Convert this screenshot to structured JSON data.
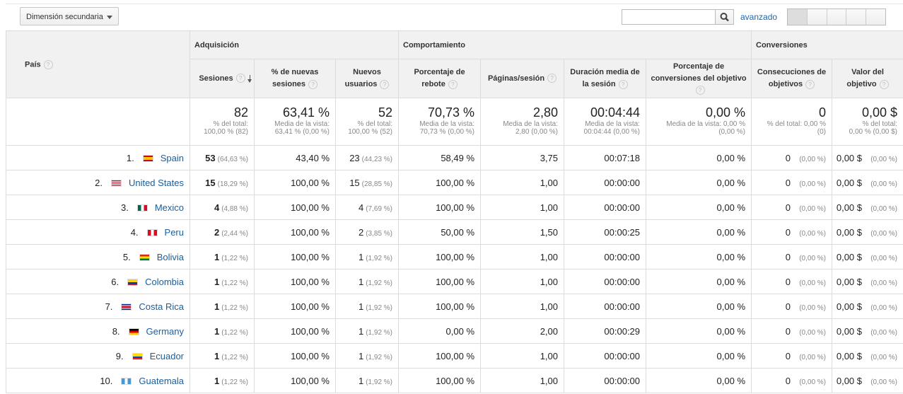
{
  "toolbar": {
    "secondary_dimension": "Dimensión secundaria",
    "advanced": "avanzado"
  },
  "table": {
    "groups": [
      "Adquisición",
      "Comportamiento",
      "Conversiones"
    ],
    "dimension": "País",
    "columns": [
      "Sesiones",
      "% de nuevas sesiones",
      "Nuevos usuarios",
      "Porcentaje de rebote",
      "Páginas/sesión",
      "Duración media de la sesión",
      "Porcentaje de conversiones del objetivo",
      "Consecuciones de objetivos",
      "Valor del objetivo"
    ],
    "totals": [
      {
        "value": "82",
        "sub": [
          "% del total:",
          "100,00 % (82)"
        ]
      },
      {
        "value": "63,41 %",
        "sub": [
          "Media de la vista:",
          "63,41 % (0,00 %)"
        ]
      },
      {
        "value": "52",
        "sub": [
          "% del total:",
          "100,00 % (52)"
        ]
      },
      {
        "value": "70,73 %",
        "sub": [
          "Media de la vista:",
          "70,73 % (0,00 %)"
        ]
      },
      {
        "value": "2,80",
        "sub": [
          "Media de la vista:",
          "2,80 (0,00 %)"
        ]
      },
      {
        "value": "00:04:44",
        "sub": [
          "Media de la vista:",
          "00:04:44 (0,00 %)"
        ]
      },
      {
        "value": "0,00 %",
        "sub": [
          "Media de la vista: 0,00 %",
          "(0,00 %)"
        ]
      },
      {
        "value": "0",
        "sub": [
          "% del total: 0,00 %",
          "(0)"
        ]
      },
      {
        "value": "0,00 $",
        "sub": [
          "% del total:",
          "0,00 % (0,00 $)"
        ]
      }
    ],
    "rows": [
      {
        "rank": "1.",
        "country": "Spain",
        "cells": [
          [
            "53",
            "(64,63 %)"
          ],
          [
            "43,40 %"
          ],
          [
            "23",
            "(44,23 %)"
          ],
          [
            "58,49 %"
          ],
          [
            "3,75"
          ],
          [
            "00:07:18"
          ],
          [
            "0,00 %"
          ],
          [
            "0",
            "(0,00 %)"
          ],
          [
            "0,00 $",
            "(0,00 %)"
          ]
        ]
      },
      {
        "rank": "2.",
        "country": "United States",
        "cells": [
          [
            "15",
            "(18,29 %)"
          ],
          [
            "100,00 %"
          ],
          [
            "15",
            "(28,85 %)"
          ],
          [
            "100,00 %"
          ],
          [
            "1,00"
          ],
          [
            "00:00:00"
          ],
          [
            "0,00 %"
          ],
          [
            "0",
            "(0,00 %)"
          ],
          [
            "0,00 $",
            "(0,00 %)"
          ]
        ]
      },
      {
        "rank": "3.",
        "country": "Mexico",
        "cells": [
          [
            "4",
            "(4,88 %)"
          ],
          [
            "100,00 %"
          ],
          [
            "4",
            "(7,69 %)"
          ],
          [
            "100,00 %"
          ],
          [
            "1,00"
          ],
          [
            "00:00:00"
          ],
          [
            "0,00 %"
          ],
          [
            "0",
            "(0,00 %)"
          ],
          [
            "0,00 $",
            "(0,00 %)"
          ]
        ]
      },
      {
        "rank": "4.",
        "country": "Peru",
        "cells": [
          [
            "2",
            "(2,44 %)"
          ],
          [
            "100,00 %"
          ],
          [
            "2",
            "(3,85 %)"
          ],
          [
            "50,00 %"
          ],
          [
            "1,50"
          ],
          [
            "00:00:25"
          ],
          [
            "0,00 %"
          ],
          [
            "0",
            "(0,00 %)"
          ],
          [
            "0,00 $",
            "(0,00 %)"
          ]
        ]
      },
      {
        "rank": "5.",
        "country": "Bolivia",
        "cells": [
          [
            "1",
            "(1,22 %)"
          ],
          [
            "100,00 %"
          ],
          [
            "1",
            "(1,92 %)"
          ],
          [
            "100,00 %"
          ],
          [
            "1,00"
          ],
          [
            "00:00:00"
          ],
          [
            "0,00 %"
          ],
          [
            "0",
            "(0,00 %)"
          ],
          [
            "0,00 $",
            "(0,00 %)"
          ]
        ]
      },
      {
        "rank": "6.",
        "country": "Colombia",
        "cells": [
          [
            "1",
            "(1,22 %)"
          ],
          [
            "100,00 %"
          ],
          [
            "1",
            "(1,92 %)"
          ],
          [
            "100,00 %"
          ],
          [
            "1,00"
          ],
          [
            "00:00:00"
          ],
          [
            "0,00 %"
          ],
          [
            "0",
            "(0,00 %)"
          ],
          [
            "0,00 $",
            "(0,00 %)"
          ]
        ]
      },
      {
        "rank": "7.",
        "country": "Costa Rica",
        "cells": [
          [
            "1",
            "(1,22 %)"
          ],
          [
            "100,00 %"
          ],
          [
            "1",
            "(1,92 %)"
          ],
          [
            "100,00 %"
          ],
          [
            "1,00"
          ],
          [
            "00:00:00"
          ],
          [
            "0,00 %"
          ],
          [
            "0",
            "(0,00 %)"
          ],
          [
            "0,00 $",
            "(0,00 %)"
          ]
        ]
      },
      {
        "rank": "8.",
        "country": "Germany",
        "cells": [
          [
            "1",
            "(1,22 %)"
          ],
          [
            "100,00 %"
          ],
          [
            "1",
            "(1,92 %)"
          ],
          [
            "0,00 %"
          ],
          [
            "2,00"
          ],
          [
            "00:00:29"
          ],
          [
            "0,00 %"
          ],
          [
            "0",
            "(0,00 %)"
          ],
          [
            "0,00 $",
            "(0,00 %)"
          ]
        ]
      },
      {
        "rank": "9.",
        "country": "Ecuador",
        "cells": [
          [
            "1",
            "(1,22 %)"
          ],
          [
            "100,00 %"
          ],
          [
            "1",
            "(1,92 %)"
          ],
          [
            "100,00 %"
          ],
          [
            "1,00"
          ],
          [
            "00:00:00"
          ],
          [
            "0,00 %"
          ],
          [
            "0",
            "(0,00 %)"
          ],
          [
            "0,00 $",
            "(0,00 %)"
          ]
        ]
      },
      {
        "rank": "10.",
        "country": "Guatemala",
        "cells": [
          [
            "1",
            "(1,22 %)"
          ],
          [
            "100,00 %"
          ],
          [
            "1",
            "(1,92 %)"
          ],
          [
            "100,00 %"
          ],
          [
            "1,00"
          ],
          [
            "00:00:00"
          ],
          [
            "0,00 %"
          ],
          [
            "0",
            "(0,00 %)"
          ],
          [
            "0,00 $",
            "(0,00 %)"
          ]
        ]
      }
    ]
  }
}
